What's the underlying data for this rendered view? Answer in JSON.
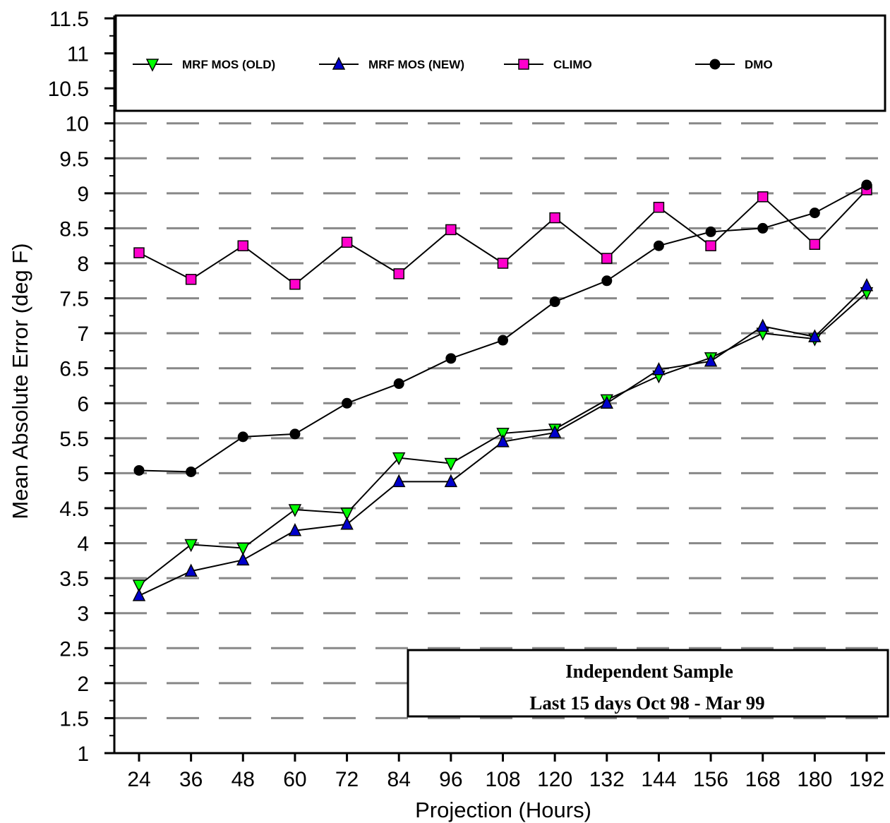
{
  "chart_data": {
    "type": "line",
    "xlabel": "Projection (Hours)",
    "ylabel": "Mean Absolute Error (deg F)",
    "x": [
      24,
      36,
      48,
      60,
      72,
      84,
      96,
      108,
      120,
      132,
      144,
      156,
      168,
      180,
      192
    ],
    "x_tick_labels": [
      "24",
      "36",
      "48",
      "60",
      "72",
      "84",
      "96",
      "108",
      "120",
      "132",
      "144",
      "156",
      "168",
      "180",
      "192"
    ],
    "ylim": [
      1,
      11.5
    ],
    "y_ticks": [
      1,
      1.5,
      2,
      2.5,
      3,
      3.5,
      4,
      4.5,
      5,
      5.5,
      6,
      6.5,
      7,
      7.5,
      8,
      8.5,
      9,
      9.5,
      10,
      10.5,
      11,
      11.5
    ],
    "y_tick_labels": [
      "1",
      "1.5",
      "2",
      "2.5",
      "3",
      "3.5",
      "4",
      "4.5",
      "5",
      "5.5",
      "6",
      "6.5",
      "7",
      "7.5",
      "8",
      "8.5",
      "9",
      "9.5",
      "10",
      "10.5",
      "11",
      "11.5"
    ],
    "grid": "horizontal dashed",
    "legend_placement": "top",
    "series": [
      {
        "name": "MRF MOS (OLD)",
        "marker": "triangle-down",
        "color": "#00ff00",
        "values": [
          3.4,
          3.98,
          3.93,
          4.48,
          4.43,
          5.22,
          5.14,
          5.57,
          5.63,
          6.05,
          6.39,
          6.65,
          7.0,
          6.92,
          7.58
        ]
      },
      {
        "name": "MRF MOS (NEW)",
        "marker": "triangle-up",
        "color": "#0000cc",
        "values": [
          3.25,
          3.6,
          3.76,
          4.18,
          4.27,
          4.88,
          4.88,
          5.45,
          5.58,
          6.0,
          6.48,
          6.6,
          7.1,
          6.95,
          7.68
        ]
      },
      {
        "name": "CLIMO",
        "marker": "square",
        "color": "#ff00cc",
        "values": [
          8.15,
          7.77,
          8.25,
          7.7,
          8.3,
          7.85,
          8.48,
          8.0,
          8.65,
          8.07,
          8.8,
          8.25,
          8.95,
          8.27,
          9.05
        ]
      },
      {
        "name": "DMO",
        "marker": "circle",
        "color": "#000000",
        "values": [
          5.04,
          5.02,
          5.52,
          5.56,
          6.0,
          6.28,
          6.64,
          6.9,
          7.45,
          7.75,
          8.25,
          8.45,
          8.5,
          8.72,
          9.12
        ]
      }
    ],
    "annotation": {
      "line1": "Independent Sample",
      "line2": "Last 15 days Oct 98 - Mar 99"
    }
  }
}
